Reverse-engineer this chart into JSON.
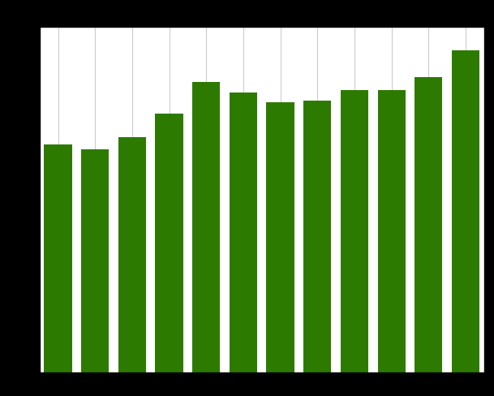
{
  "values": [
    14.5,
    14.2,
    15.0,
    16.5,
    18.5,
    17.8,
    17.2,
    17.3,
    18.0,
    18.0,
    18.8,
    20.5
  ],
  "bar_color": "#2d7a00",
  "background_color": "#ffffff",
  "grid_color": "#cccccc",
  "ylim": [
    0,
    22
  ],
  "figsize": [
    6.09,
    4.89
  ],
  "dpi": 100,
  "bar_width": 0.75,
  "outer_bg": "#000000"
}
